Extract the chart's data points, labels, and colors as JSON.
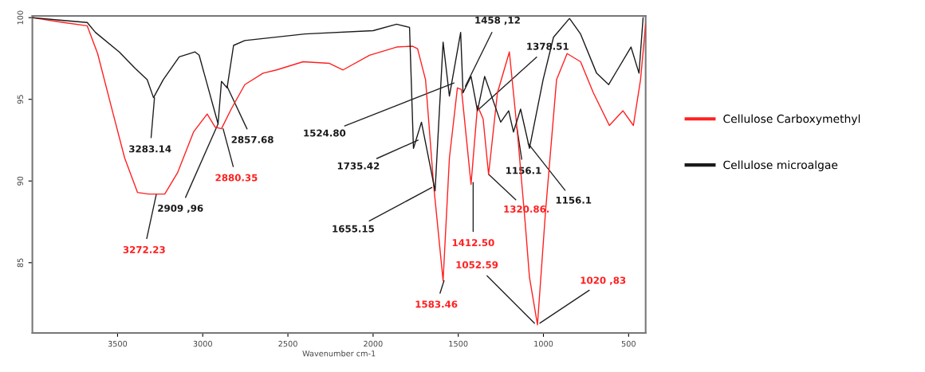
{
  "chart_data": {
    "type": "line",
    "xlabel": "Wavenumber cm-1",
    "xlim": [
      4000,
      400
    ],
    "ylim": [
      80.7,
      100.1
    ],
    "xticks": [
      3500,
      3000,
      2500,
      2000,
      1500,
      1000,
      500
    ],
    "yticks": [
      100,
      95,
      90,
      85
    ],
    "grid": false,
    "legend": "right",
    "marker": "none",
    "line_style": "solid",
    "series": [
      {
        "name": "Cellulose Carboxymethyl",
        "color": "#ff2020",
        "x": [
          4000,
          3817,
          3678,
          3617,
          3538,
          3458,
          3383,
          3317,
          3223,
          3148,
          3054,
          2974,
          2927,
          2890,
          2833,
          2753,
          2646,
          2566,
          2411,
          2256,
          2176,
          2021,
          1862,
          1768,
          1739,
          1692,
          1645,
          1589,
          1552,
          1505,
          1481,
          1425,
          1387,
          1354,
          1322,
          1270,
          1200,
          1153,
          1106,
          1082,
          1035,
          988,
          923,
          861,
          782,
          707,
          613,
          533,
          472,
          430,
          400
        ],
        "values": [
          100,
          99.7,
          99.5,
          97.8,
          94.6,
          91.4,
          89.3,
          89.2,
          89.2,
          90.5,
          93.0,
          94.1,
          93.3,
          93.2,
          94.4,
          95.9,
          96.6,
          96.8,
          97.3,
          97.2,
          96.8,
          97.7,
          98.2,
          98.25,
          98.1,
          96.2,
          89.8,
          83.9,
          91.4,
          95.7,
          95.6,
          89.8,
          94.6,
          93.8,
          90.4,
          95.4,
          97.9,
          93.0,
          87.3,
          84.1,
          81.2,
          88.1,
          96.2,
          97.8,
          97.3,
          95.4,
          93.4,
          94.3,
          93.4,
          96.2,
          99.6
        ]
      },
      {
        "name": "Cellulose microalgae",
        "color": "#1a1a1a",
        "x": [
          4000,
          3840,
          3678,
          3630,
          3490,
          3397,
          3326,
          3289,
          3232,
          3138,
          3045,
          3021,
          2910,
          2890,
          2857,
          2819,
          2753,
          2400,
          2000,
          1862,
          1786,
          1763,
          1716,
          1636,
          1589,
          1552,
          1486,
          1472,
          1425,
          1387,
          1345,
          1251,
          1204,
          1176,
          1134,
          1082,
          1002,
          941,
          847,
          782,
          688,
          617,
          566,
          486,
          439,
          415
        ],
        "values": [
          100,
          99.85,
          99.7,
          99.1,
          97.9,
          96.9,
          96.2,
          95.1,
          96.2,
          97.6,
          97.9,
          97.7,
          93.5,
          96.1,
          95.7,
          98.3,
          98.6,
          99.0,
          99.2,
          99.6,
          99.4,
          92.0,
          93.6,
          89.4,
          98.5,
          95.2,
          99.1,
          95.4,
          96.4,
          94.3,
          96.4,
          93.6,
          94.3,
          93.0,
          94.4,
          92.0,
          96.2,
          98.8,
          99.95,
          99.0,
          96.6,
          95.9,
          96.8,
          98.2,
          96.6,
          100
        ]
      }
    ],
    "annotations": [
      {
        "text": "3283.14",
        "x": 3283.14,
        "y": 95.1
      },
      {
        "text": "2909 ,96",
        "x": 2909.96,
        "y": 93.5
      },
      {
        "text": "2857.68",
        "x": 2857.68,
        "y": 95.8
      },
      {
        "text": "1735.42",
        "x": 1735.42,
        "y": 92.5
      },
      {
        "text": "1655.15",
        "x": 1655.15,
        "y": 89.6
      },
      {
        "text": "1524.80",
        "x": 1524.8,
        "y": 96.0
      },
      {
        "text": "1458 ,12",
        "x": 1458.12,
        "y": 95.8
      },
      {
        "text": "1378.51",
        "x": 1378.51,
        "y": 94.4
      },
      {
        "text": "1156.1",
        "x": 1156.1,
        "y": 93.3
      },
      {
        "text": "1156.1",
        "x": 1090,
        "y": 92.3
      },
      {
        "text": "3272.23",
        "x": 3272.23,
        "y": 89.2
      },
      {
        "text": "2880.35",
        "x": 2880.35,
        "y": 93.2
      },
      {
        "text": "1583.46",
        "x": 1583.46,
        "y": 83.9
      },
      {
        "text": "1412.50",
        "x": 1412.5,
        "y": 89.9
      },
      {
        "text": "1320.86.",
        "x": 1320.86,
        "y": 90.4
      },
      {
        "text": "1052.59",
        "x": 1052.59,
        "y": 81.3
      },
      {
        "text": "1020 ,83",
        "x": 1020.83,
        "y": 81.3
      }
    ]
  }
}
